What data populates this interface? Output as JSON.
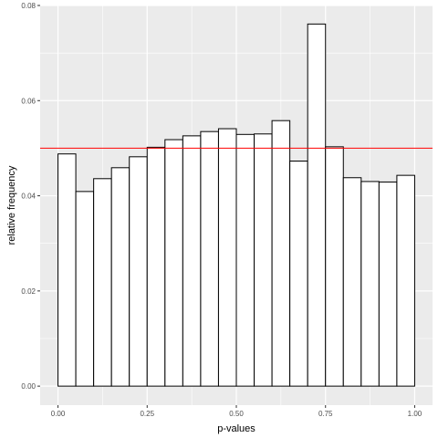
{
  "chart_data": {
    "type": "bar",
    "xlabel": "p-values",
    "ylabel": "relative frequency",
    "xlim": [
      -0.05,
      1.05
    ],
    "ylim": [
      -0.004,
      0.08
    ],
    "x_ticks": [
      0.0,
      0.25,
      0.5,
      0.75,
      1.0
    ],
    "x_tick_labels": [
      "0.00",
      "0.25",
      "0.50",
      "0.75",
      "1.00"
    ],
    "y_ticks": [
      0.0,
      0.02,
      0.04,
      0.06,
      0.08
    ],
    "y_tick_labels": [
      "0.00",
      "0.02",
      "0.04",
      "0.06",
      "0.08"
    ],
    "bin_width": 0.05,
    "bins": [
      {
        "x0": 0.0,
        "x1": 0.05,
        "value": 0.0488
      },
      {
        "x0": 0.05,
        "x1": 0.1,
        "value": 0.0409
      },
      {
        "x0": 0.1,
        "x1": 0.15,
        "value": 0.0436
      },
      {
        "x0": 0.15,
        "x1": 0.2,
        "value": 0.0459
      },
      {
        "x0": 0.2,
        "x1": 0.25,
        "value": 0.0482
      },
      {
        "x0": 0.25,
        "x1": 0.3,
        "value": 0.0502
      },
      {
        "x0": 0.3,
        "x1": 0.35,
        "value": 0.0518
      },
      {
        "x0": 0.35,
        "x1": 0.4,
        "value": 0.0526
      },
      {
        "x0": 0.4,
        "x1": 0.45,
        "value": 0.0535
      },
      {
        "x0": 0.45,
        "x1": 0.5,
        "value": 0.0541
      },
      {
        "x0": 0.5,
        "x1": 0.55,
        "value": 0.0529
      },
      {
        "x0": 0.55,
        "x1": 0.6,
        "value": 0.053
      },
      {
        "x0": 0.6,
        "x1": 0.65,
        "value": 0.0558
      },
      {
        "x0": 0.65,
        "x1": 0.7,
        "value": 0.0473
      },
      {
        "x0": 0.7,
        "x1": 0.75,
        "value": 0.0761
      },
      {
        "x0": 0.75,
        "x1": 0.8,
        "value": 0.0503
      },
      {
        "x0": 0.8,
        "x1": 0.85,
        "value": 0.0438
      },
      {
        "x0": 0.85,
        "x1": 0.9,
        "value": 0.043
      },
      {
        "x0": 0.9,
        "x1": 0.95,
        "value": 0.0429
      },
      {
        "x0": 0.95,
        "x1": 1.0,
        "value": 0.0443
      }
    ],
    "reference_line": {
      "y": 0.05,
      "color": "#ff0000"
    },
    "bar_fill": "#ffffff",
    "bar_stroke": "#000000",
    "panel_background": "#ebebeb",
    "grid": true,
    "grid_color": "#ffffff"
  }
}
